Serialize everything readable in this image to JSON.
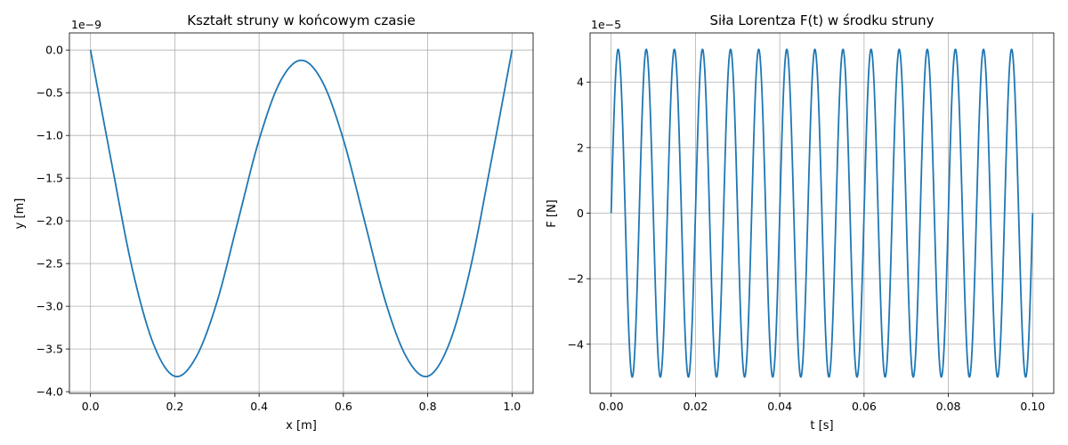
{
  "chart_data": [
    {
      "type": "line",
      "title": "Kształt struny w końcowym czasie",
      "xlabel": "x [m]",
      "ylabel": "y [m]",
      "y_offset_label": "1e−9",
      "xlim": [
        -0.05,
        1.05
      ],
      "ylim": [
        -4.02,
        0.2
      ],
      "y_scale": 1e-09,
      "grid": true,
      "x_ticks": [
        0.0,
        0.2,
        0.4,
        0.6,
        0.8,
        1.0
      ],
      "x_tick_labels": [
        "0.0",
        "0.2",
        "0.4",
        "0.6",
        "0.8",
        "1.0"
      ],
      "y_ticks": [
        0.0,
        -0.5,
        -1.0,
        -1.5,
        -2.0,
        -2.5,
        -3.0,
        -3.5,
        -4.0
      ],
      "y_tick_labels": [
        "0.0",
        "−0.5",
        "−1.0",
        "−1.5",
        "−2.0",
        "−2.5",
        "−3.0",
        "−3.5",
        "−4.0"
      ],
      "series": [
        {
          "color": "#1f77b4",
          "x": [
            0.0,
            0.05,
            0.1,
            0.15,
            0.2,
            0.25,
            0.3,
            0.35,
            0.4,
            0.45,
            0.5,
            0.55,
            0.6,
            0.65,
            0.7,
            0.75,
            0.8,
            0.85,
            0.9,
            0.95,
            1.0
          ],
          "y": [
            0.0,
            -1.32,
            -2.58,
            -3.45,
            -3.82,
            -3.6,
            -2.95,
            -2.0,
            -1.05,
            -0.37,
            -0.12,
            -0.37,
            -1.05,
            -2.0,
            -2.95,
            -3.6,
            -3.82,
            -3.45,
            -2.58,
            -1.32,
            0.0
          ]
        }
      ]
    },
    {
      "type": "line",
      "title": "Siła Lorentza F(t) w środku struny",
      "xlabel": "t [s]",
      "ylabel": "F [N]",
      "y_offset_label": "1e−5",
      "xlim": [
        -0.005,
        0.105
      ],
      "ylim": [
        -5.5,
        5.5
      ],
      "y_scale": 1e-05,
      "grid": true,
      "x_ticks": [
        0.0,
        0.02,
        0.04,
        0.06,
        0.08,
        0.1
      ],
      "x_tick_labels": [
        "0.00",
        "0.02",
        "0.04",
        "0.06",
        "0.08",
        "0.10"
      ],
      "y_ticks": [
        -4,
        -2,
        0,
        2,
        4
      ],
      "y_tick_labels": [
        "−4",
        "−2",
        "0",
        "2",
        "4"
      ],
      "series": [
        {
          "color": "#1f77b4",
          "function": "F(t) = 5 sin(2π·150·t)",
          "amplitude": 5.0,
          "frequency_hz": 150,
          "t_start": 0.0,
          "t_end": 0.1
        }
      ]
    }
  ]
}
